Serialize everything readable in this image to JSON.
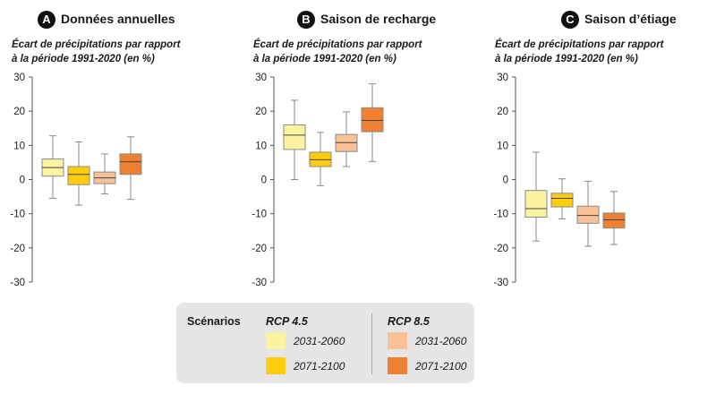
{
  "chart_data": [
    {
      "type": "boxplot",
      "badge": "A",
      "title": "Données annuelles",
      "ylabel": [
        "Écart de précipitations par rapport",
        "à la période 1991-2020 (en %)"
      ],
      "ylim": [
        -30,
        30
      ],
      "yticks": [
        "30",
        "20",
        "10",
        "0",
        "-10",
        "-20",
        "-30"
      ],
      "series": [
        {
          "name": "RCP 4.5 2031-2060",
          "color": "#fbf3a2",
          "min": -5.5,
          "q1": 1,
          "median": 3.5,
          "q3": 6,
          "max": 12.8
        },
        {
          "name": "RCP 4.5 2071-2100",
          "color": "#fecc0c",
          "min": -7.5,
          "q1": -1.5,
          "median": 1.5,
          "q3": 3.8,
          "max": 11
        },
        {
          "name": "RCP 8.5 2031-2060",
          "color": "#f8c196",
          "min": -4.2,
          "q1": -1.2,
          "median": 0.5,
          "q3": 2.2,
          "max": 7.5
        },
        {
          "name": "RCP 8.5 2071-2100",
          "color": "#ef7f31",
          "min": -5.8,
          "q1": 1.5,
          "median": 5.2,
          "q3": 7.5,
          "max": 12.5
        }
      ]
    },
    {
      "type": "boxplot",
      "badge": "B",
      "title": "Saison de recharge",
      "ylabel": [
        "Écart de précipitations par rapport",
        "à la période 1991-2020 (en %)"
      ],
      "ylim": [
        -30,
        30
      ],
      "yticks": [
        "30",
        "20",
        "10",
        "0",
        "-10",
        "-20",
        "-30"
      ],
      "series": [
        {
          "name": "RCP 4.5 2031-2060",
          "color": "#fbf3a2",
          "min": 0,
          "q1": 8.8,
          "median": 13,
          "q3": 16,
          "max": 23.2
        },
        {
          "name": "RCP 4.5 2071-2100",
          "color": "#fecc0c",
          "min": -1.8,
          "q1": 3.8,
          "median": 5.8,
          "q3": 8,
          "max": 13.8
        },
        {
          "name": "RCP 8.5 2031-2060",
          "color": "#f8c196",
          "min": 3.8,
          "q1": 8.2,
          "median": 10.8,
          "q3": 13.2,
          "max": 19.8
        },
        {
          "name": "RCP 8.5 2071-2100",
          "color": "#ef7f31",
          "min": 5.3,
          "q1": 14,
          "median": 17.3,
          "q3": 21,
          "max": 28
        }
      ]
    },
    {
      "type": "boxplot",
      "badge": "C",
      "title": "Saison d’étiage",
      "ylabel": [
        "Écart de précipitations par rapport",
        "à la période 1991-2020 (en %)"
      ],
      "ylim": [
        -30,
        30
      ],
      "yticks": [
        "30",
        "20",
        "10",
        "0",
        "-10",
        "-20",
        "-30"
      ],
      "series": [
        {
          "name": "RCP 4.5 2031-2060",
          "color": "#fbf3a2",
          "min": -18,
          "q1": -11,
          "median": -8.5,
          "q3": -3.2,
          "max": 8
        },
        {
          "name": "RCP 4.5 2071-2100",
          "color": "#fecc0c",
          "min": -11.5,
          "q1": -8,
          "median": -5.5,
          "q3": -4,
          "max": 0.2
        },
        {
          "name": "RCP 8.5 2031-2060",
          "color": "#f8c196",
          "min": -19.5,
          "q1": -12.8,
          "median": -10.5,
          "q3": -7.8,
          "max": -0.5
        },
        {
          "name": "RCP 8.5 2071-2100",
          "color": "#ef7f31",
          "min": -19,
          "q1": -14.2,
          "median": -11.8,
          "q3": -9.8,
          "max": -3.5
        }
      ]
    }
  ],
  "legend": {
    "title": "Scénarios",
    "groups": [
      {
        "name": "RCP 4.5",
        "items": [
          {
            "label": "2031-2060",
            "color": "#fbf3a2"
          },
          {
            "label": "2071-2100",
            "color": "#fecc0c"
          }
        ]
      },
      {
        "name": "RCP 8.5",
        "items": [
          {
            "label": "2031-2060",
            "color": "#f8c196"
          },
          {
            "label": "2071-2100",
            "color": "#ef7f31"
          }
        ]
      }
    ]
  }
}
